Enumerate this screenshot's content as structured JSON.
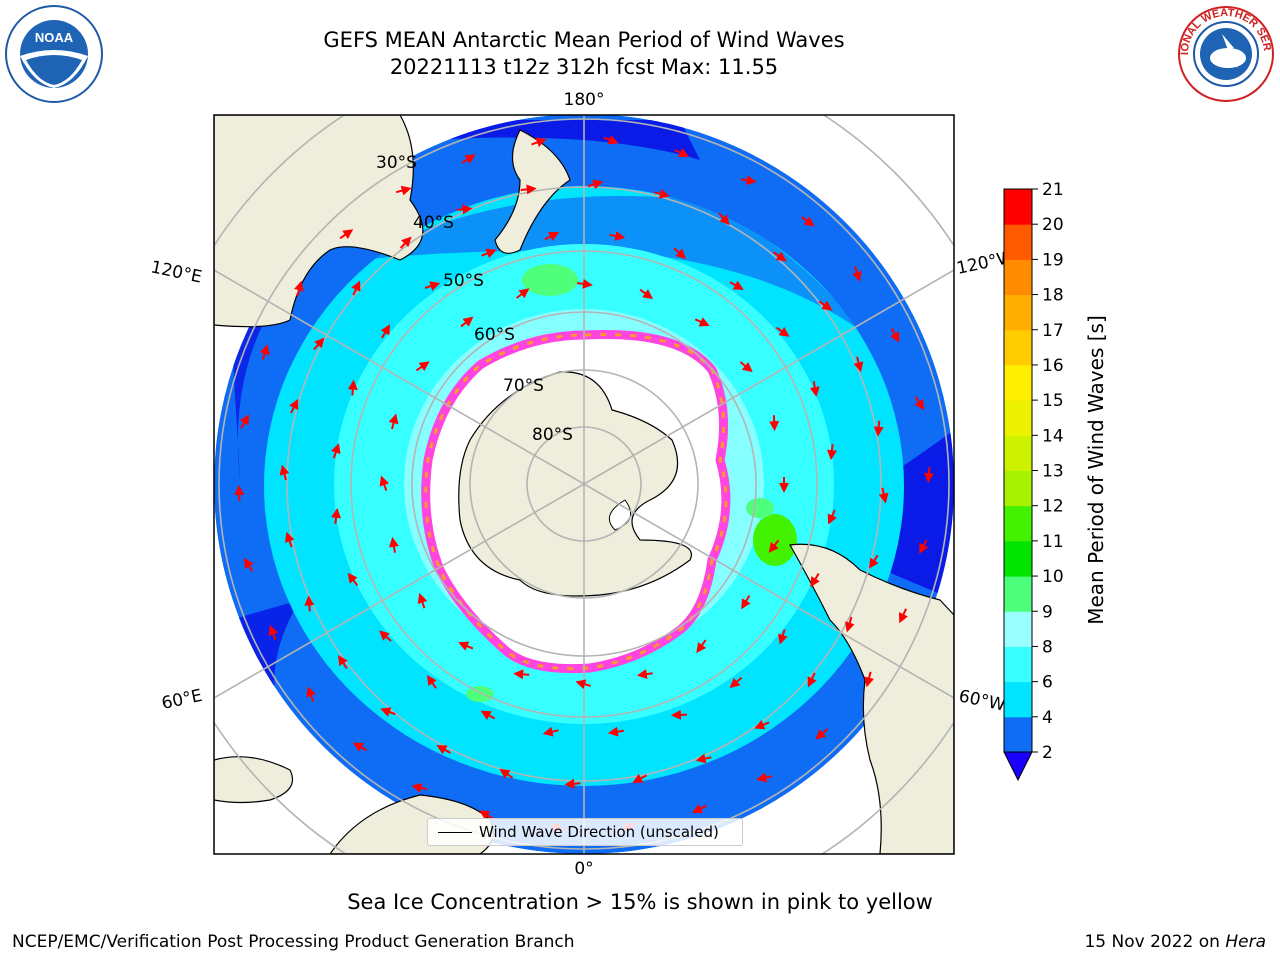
{
  "title": {
    "line1": "GEFS MEAN Antarctic Mean Period of Wind Waves",
    "line2": "20221113 t12z 312h fcst   Max: 11.55"
  },
  "map": {
    "lon_labels": {
      "top": "180°",
      "bottom": "0°",
      "upper_left": "120°E",
      "upper_right": "120°W",
      "lower_left": "60°E",
      "lower_right": "60°W"
    },
    "lat_labels": [
      "30°S",
      "40°S",
      "50°S",
      "60°S",
      "70°S",
      "80°S"
    ],
    "legend_label": "Wind Wave Direction (unscaled)"
  },
  "colorbar": {
    "title": "Mean Period of Wind Waves [s]",
    "ticks": [
      "2",
      "4",
      "6",
      "8",
      "9",
      "10",
      "11",
      "12",
      "13",
      "14",
      "15",
      "16",
      "17",
      "18",
      "19",
      "20",
      "21"
    ],
    "colors": [
      "#0f6df5",
      "#00e4ff",
      "#38ffff",
      "#99ffff",
      "#4dff7a",
      "#00e400",
      "#43f200",
      "#a6f200",
      "#cdf200",
      "#ecf200",
      "#fff000",
      "#ffcc00",
      "#ffae00",
      "#ff8c00",
      "#ff5a00",
      "#ff0000"
    ],
    "under_color": "#1a00ff"
  },
  "logos": {
    "noaa": "NOAA",
    "nws": "NATIONAL WEATHER SERVICE"
  },
  "caption": "Sea Ice Concentration > 15% is shown in pink to yellow",
  "footer": {
    "left": "NCEP/EMC/Verification Post Processing Product Generation Branch",
    "date": "15 Nov 2022 on ",
    "host": "Hera"
  },
  "colors": {
    "land": "#efeddb",
    "ocean_deep": "#0f6df5",
    "ocean_far": "#0a1be8",
    "ocean_mid": "#00e4ff",
    "ocean_near": "#38ffff",
    "ice_edge": "#ff44e0",
    "arrow": "#ff0000",
    "grid": "#b4b4b4"
  }
}
